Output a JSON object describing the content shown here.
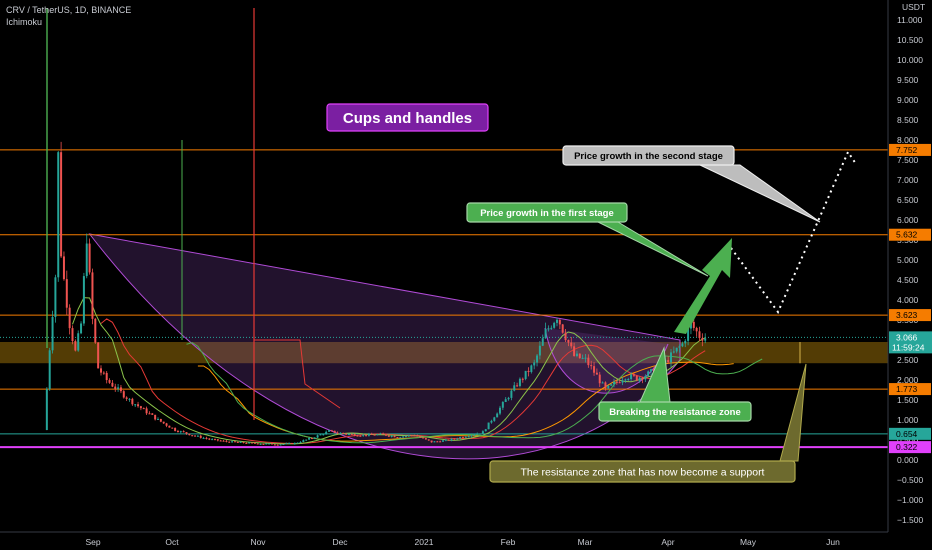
{
  "header": {
    "symbol_line": "CRV / TetherUS, 1D, BINANCE",
    "indicator": "Ichimoku"
  },
  "chart_data": {
    "type": "candlestick",
    "symbol": "CRV / TetherUS",
    "timeframe": "1D",
    "exchange": "BINANCE",
    "currency_label": "USDT",
    "ylim": [
      -1.7,
      11.3
    ],
    "y_ticks": [
      11.0,
      10.5,
      10.0,
      9.5,
      9.0,
      8.5,
      8.0,
      7.5,
      7.0,
      6.5,
      6.0,
      5.5,
      5.0,
      4.5,
      4.0,
      3.5,
      3.0,
      2.5,
      2.0,
      1.5,
      1.0,
      0.5,
      0.0,
      -0.5,
      -1.0,
      -1.5
    ],
    "y_tick_labels": [
      "11.000",
      "10.500",
      "10.000",
      "9.500",
      "9.000",
      "8.500",
      "8.000",
      "7.500",
      "7.000",
      "6.500",
      "6.000",
      "5.500",
      "5.000",
      "4.500",
      "4.000",
      "3.500",
      "3.000",
      "2.500",
      "2.000",
      "1.500",
      "1.000",
      "0.500",
      "0.000",
      "−0.500",
      "−1.000",
      "−1.500"
    ],
    "x_ticks": [
      "Sep",
      "Oct",
      "Nov",
      "Dec",
      "2021",
      "Feb",
      "Mar",
      "Apr",
      "May",
      "Jun"
    ],
    "horizontal_levels": [
      {
        "value": 7.752,
        "label": "7.752",
        "color": "#f57c00"
      },
      {
        "value": 5.632,
        "label": "5.632",
        "color": "#f57c00"
      },
      {
        "value": 3.623,
        "label": "3.623",
        "color": "#f57c00"
      },
      {
        "value": 1.773,
        "label": "1.773",
        "color": "#f57c00"
      },
      {
        "value": 0.654,
        "label": "0.654",
        "color": "#26a69a"
      },
      {
        "value": 0.322,
        "label": "0.322",
        "color": "#e040fb"
      }
    ],
    "current_price": {
      "value": 3.066,
      "label": "3.066",
      "countdown": "11:59:24",
      "color": "#26a69a"
    },
    "resistance_zone": {
      "top": 2.95,
      "bottom": 2.42,
      "color": "#b8860b"
    },
    "price_path": [
      [
        0,
        0.75
      ],
      [
        2,
        2.8
      ],
      [
        4,
        4.6
      ],
      [
        5,
        7.6
      ],
      [
        6,
        5.2
      ],
      [
        7,
        4.5
      ],
      [
        9,
        3.4
      ],
      [
        11,
        2.7
      ],
      [
        13,
        3.4
      ],
      [
        15,
        5.6
      ],
      [
        17,
        3.5
      ],
      [
        19,
        2.3
      ],
      [
        22,
        2.0
      ],
      [
        26,
        1.75
      ],
      [
        30,
        1.5
      ],
      [
        35,
        1.25
      ],
      [
        40,
        1.0
      ],
      [
        46,
        0.75
      ],
      [
        52,
        0.62
      ],
      [
        58,
        0.52
      ],
      [
        64,
        0.46
      ],
      [
        70,
        0.43
      ],
      [
        76,
        0.41
      ],
      [
        82,
        0.39
      ],
      [
        88,
        0.42
      ],
      [
        94,
        0.55
      ],
      [
        100,
        0.72
      ],
      [
        106,
        0.65
      ],
      [
        112,
        0.62
      ],
      [
        118,
        0.64
      ],
      [
        124,
        0.58
      ],
      [
        130,
        0.62
      ],
      [
        136,
        0.45
      ],
      [
        142,
        0.5
      ],
      [
        148,
        0.6
      ],
      [
        154,
        0.7
      ],
      [
        160,
        1.3
      ],
      [
        166,
        1.9
      ],
      [
        172,
        2.4
      ],
      [
        176,
        3.2
      ],
      [
        180,
        3.6
      ],
      [
        183,
        3.1
      ],
      [
        186,
        2.6
      ],
      [
        190,
        2.5
      ],
      [
        194,
        2.1
      ],
      [
        197,
        1.75
      ],
      [
        200,
        1.9
      ],
      [
        204,
        2.1
      ],
      [
        208,
        2.05
      ],
      [
        212,
        2.15
      ],
      [
        216,
        2.3
      ],
      [
        220,
        2.6
      ],
      [
        224,
        2.9
      ],
      [
        227,
        3.4
      ],
      [
        230,
        3.1
      ],
      [
        232,
        3.066
      ]
    ],
    "annotations": [
      {
        "id": "title",
        "text": "Cups and handles"
      },
      {
        "id": "first-stage",
        "text": "Price growth in the first stage"
      },
      {
        "id": "second-stage",
        "text": "Price growth in the second stage"
      },
      {
        "id": "breaking",
        "text": "Breaking the resistance zone"
      },
      {
        "id": "support",
        "text": "The resistance zone that has now become a support"
      }
    ]
  }
}
